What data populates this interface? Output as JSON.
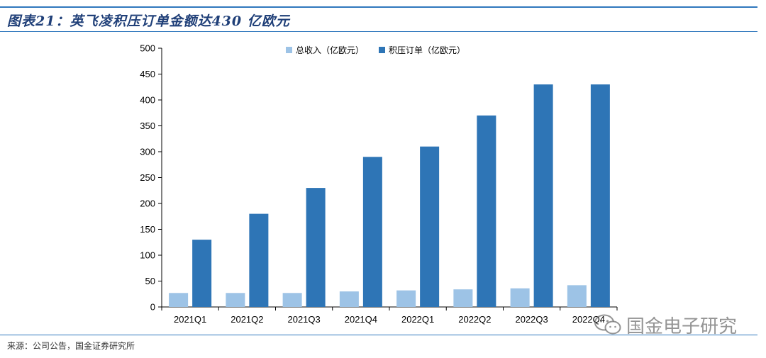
{
  "header": {
    "title": "图表21：英飞凌积压订单金额达430 亿欧元"
  },
  "footer": {
    "source": "来源：公司公告，国金证券研究所"
  },
  "watermark": {
    "text": "国金电子研究",
    "icon": "wechat-icon"
  },
  "colors": {
    "revenue": "#9dc3e6",
    "backlog": "#2e75b6",
    "rule": "#2f77bd"
  },
  "chart_data": {
    "type": "bar",
    "categories": [
      "2021Q1",
      "2021Q2",
      "2021Q3",
      "2021Q4",
      "2022Q1",
      "2022Q2",
      "2022Q3",
      "2022Q4"
    ],
    "series": [
      {
        "name": "总收入（亿欧元）",
        "values": [
          27,
          27,
          27,
          30,
          32,
          34,
          36,
          42
        ]
      },
      {
        "name": "积压订单（亿欧元）",
        "values": [
          130,
          180,
          230,
          290,
          310,
          370,
          430,
          430
        ]
      }
    ],
    "ylim": [
      0,
      500
    ],
    "yticks": [
      0,
      50,
      100,
      150,
      200,
      250,
      300,
      350,
      400,
      450,
      500
    ],
    "grid": false,
    "legend": "top-center"
  }
}
